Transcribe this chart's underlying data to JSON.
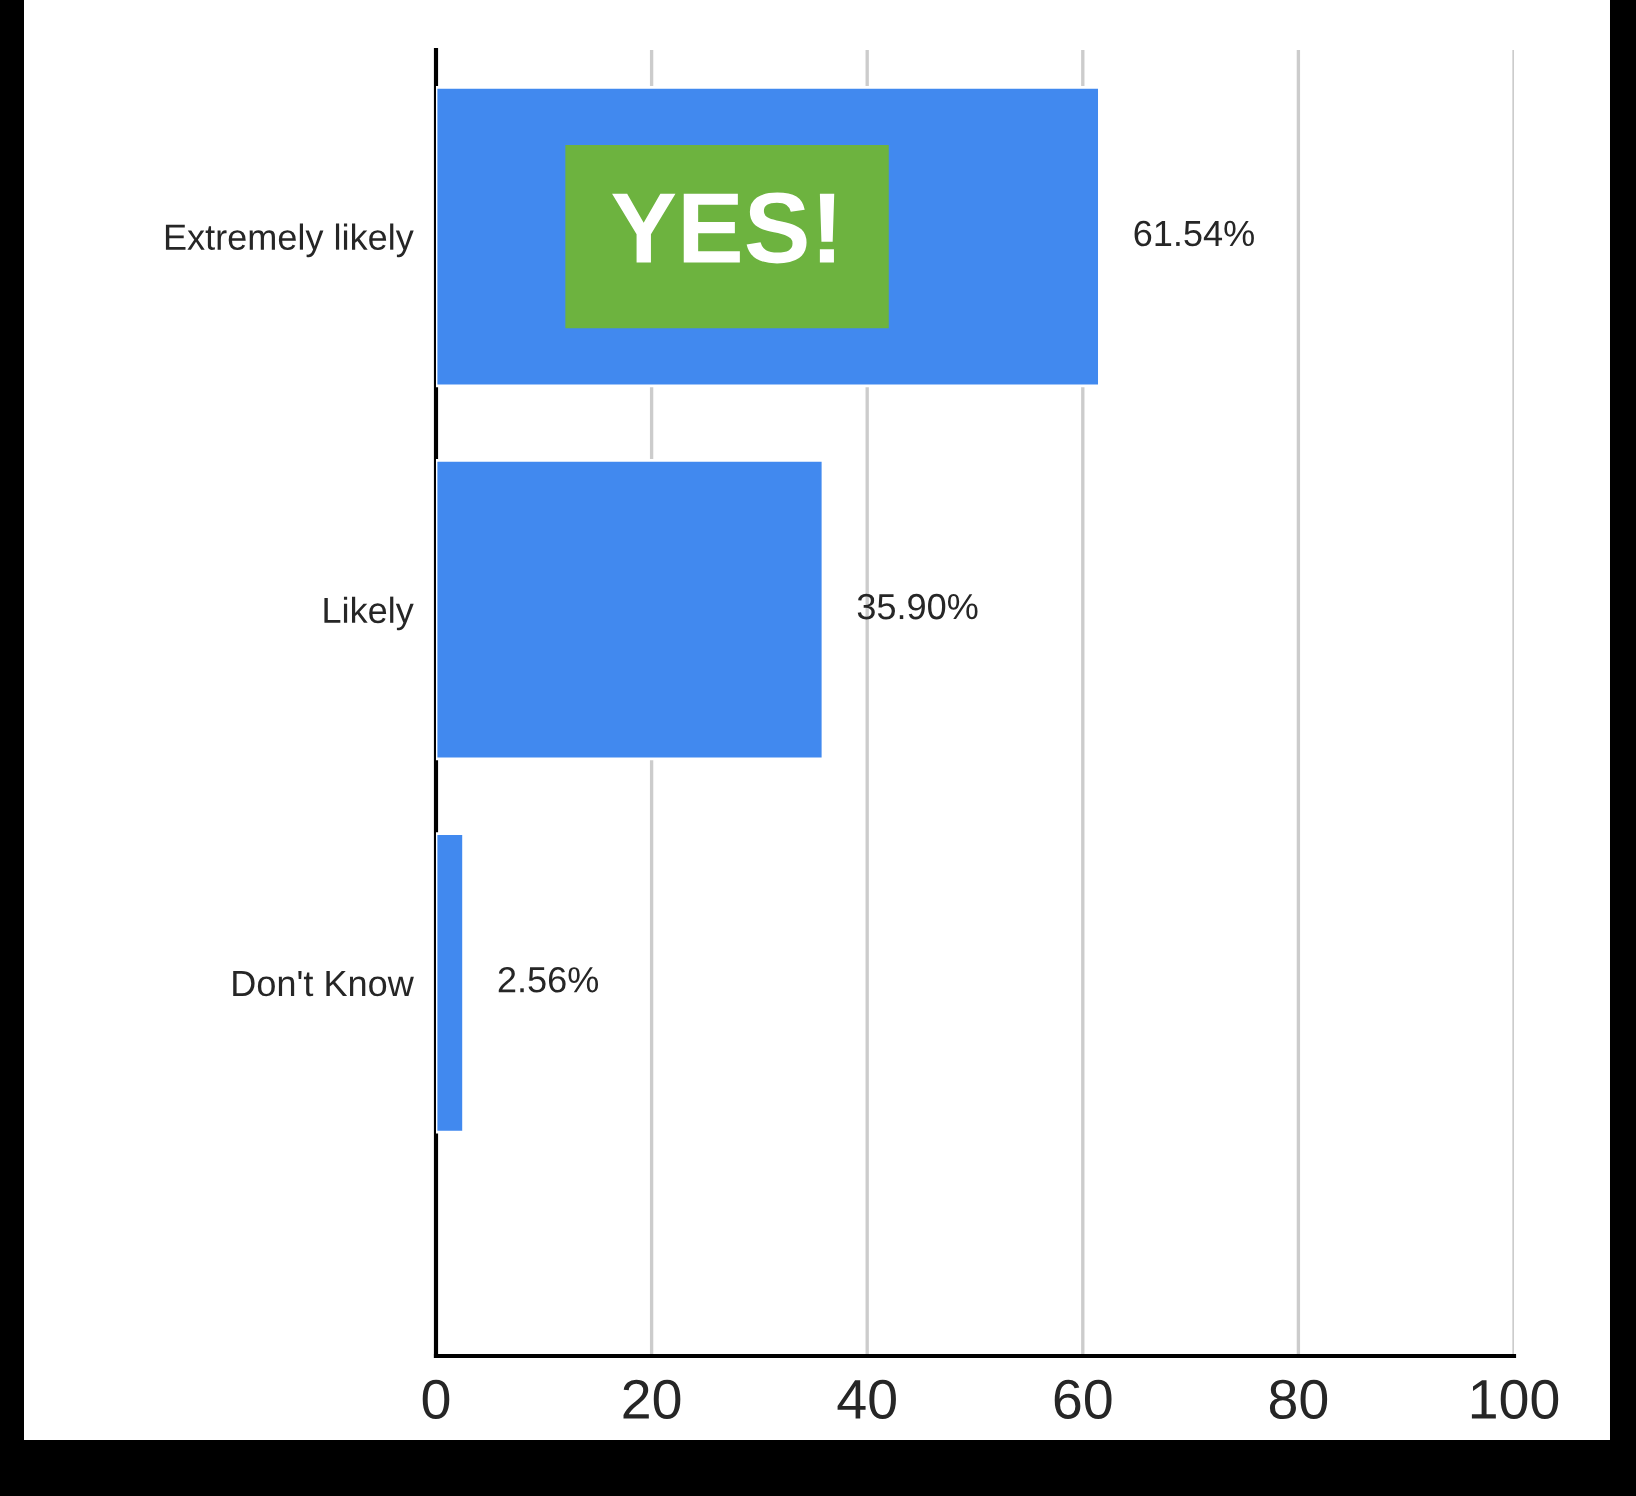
{
  "chart_data": {
    "type": "bar",
    "orientation": "horizontal",
    "categories": [
      "Extremely likely",
      "Likely",
      "Don't Know"
    ],
    "values": [
      61.54,
      35.9,
      2.56
    ],
    "color": "#4189ef",
    "value_labels": [
      "61.54%",
      "35.90%",
      "2.56%"
    ],
    "xlim": [
      0,
      100
    ],
    "xticks": [
      0,
      20,
      40,
      60,
      80,
      100
    ],
    "grid": "x",
    "annotations": [
      "YES!"
    ]
  }
}
